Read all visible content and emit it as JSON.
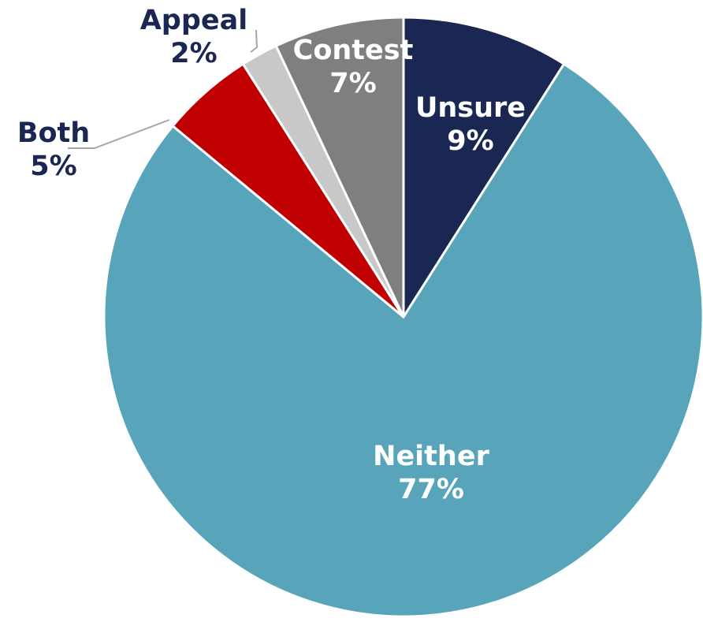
{
  "chart_data": {
    "type": "pie",
    "categories": [
      "Unsure",
      "Neither",
      "Both",
      "Appeal",
      "Contest"
    ],
    "values": [
      9,
      77,
      5,
      2,
      7
    ],
    "value_labels": [
      "9%",
      "77%",
      "5%",
      "2%",
      "7%"
    ],
    "colors": [
      "#1b2753",
      "#58a5bb",
      "#c00000",
      "#c8c8c8",
      "#7f7f7f"
    ]
  }
}
